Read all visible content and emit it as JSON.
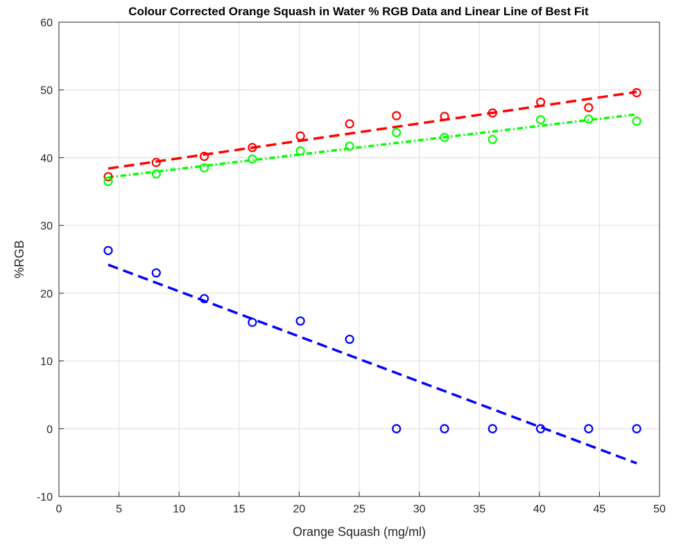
{
  "chart_data": {
    "type": "scatter",
    "title": "Colour Corrected Orange Squash in Water % RGB Data and Linear Line of Best Fit",
    "xlabel": "Orange Squash (mg/ml)",
    "ylabel": "%RGB",
    "xlim": [
      0,
      50
    ],
    "ylim": [
      -10,
      60
    ],
    "xticks": [
      0,
      5,
      10,
      15,
      20,
      25,
      30,
      35,
      40,
      45,
      50
    ],
    "yticks": [
      -10,
      0,
      10,
      20,
      30,
      40,
      50,
      60
    ],
    "grid": true,
    "x": [
      4.1,
      8.1,
      12.1,
      16.1,
      20.1,
      24.2,
      28.1,
      32.1,
      36.1,
      40.1,
      44.1,
      48.1
    ],
    "series": [
      {
        "color": "#ff0000",
        "marker": "circle",
        "values": [
          37.2,
          39.3,
          40.2,
          41.5,
          43.2,
          45.0,
          46.2,
          46.1,
          46.6,
          48.2,
          47.4,
          49.6
        ],
        "fit": {
          "x": [
            4.1,
            48.1
          ],
          "y": [
            38.4,
            49.7
          ],
          "style": "dashed"
        }
      },
      {
        "color": "#00ff00",
        "marker": "circle",
        "values": [
          36.5,
          37.6,
          38.5,
          39.8,
          41.0,
          41.7,
          43.7,
          43.0,
          42.7,
          45.6,
          45.7,
          45.4
        ],
        "fit": {
          "x": [
            4.1,
            48.1
          ],
          "y": [
            37.1,
            46.4
          ],
          "style": "dotted-dashed"
        }
      },
      {
        "color": "#0000ff",
        "marker": "circle",
        "values": [
          26.3,
          23.0,
          19.2,
          15.7,
          15.9,
          13.2,
          0.0,
          0.0,
          0.0,
          0.0,
          0.0,
          0.0
        ],
        "fit": {
          "x": [
            4.1,
            48.1
          ],
          "y": [
            24.2,
            -5.1
          ],
          "style": "dashed"
        }
      }
    ]
  }
}
